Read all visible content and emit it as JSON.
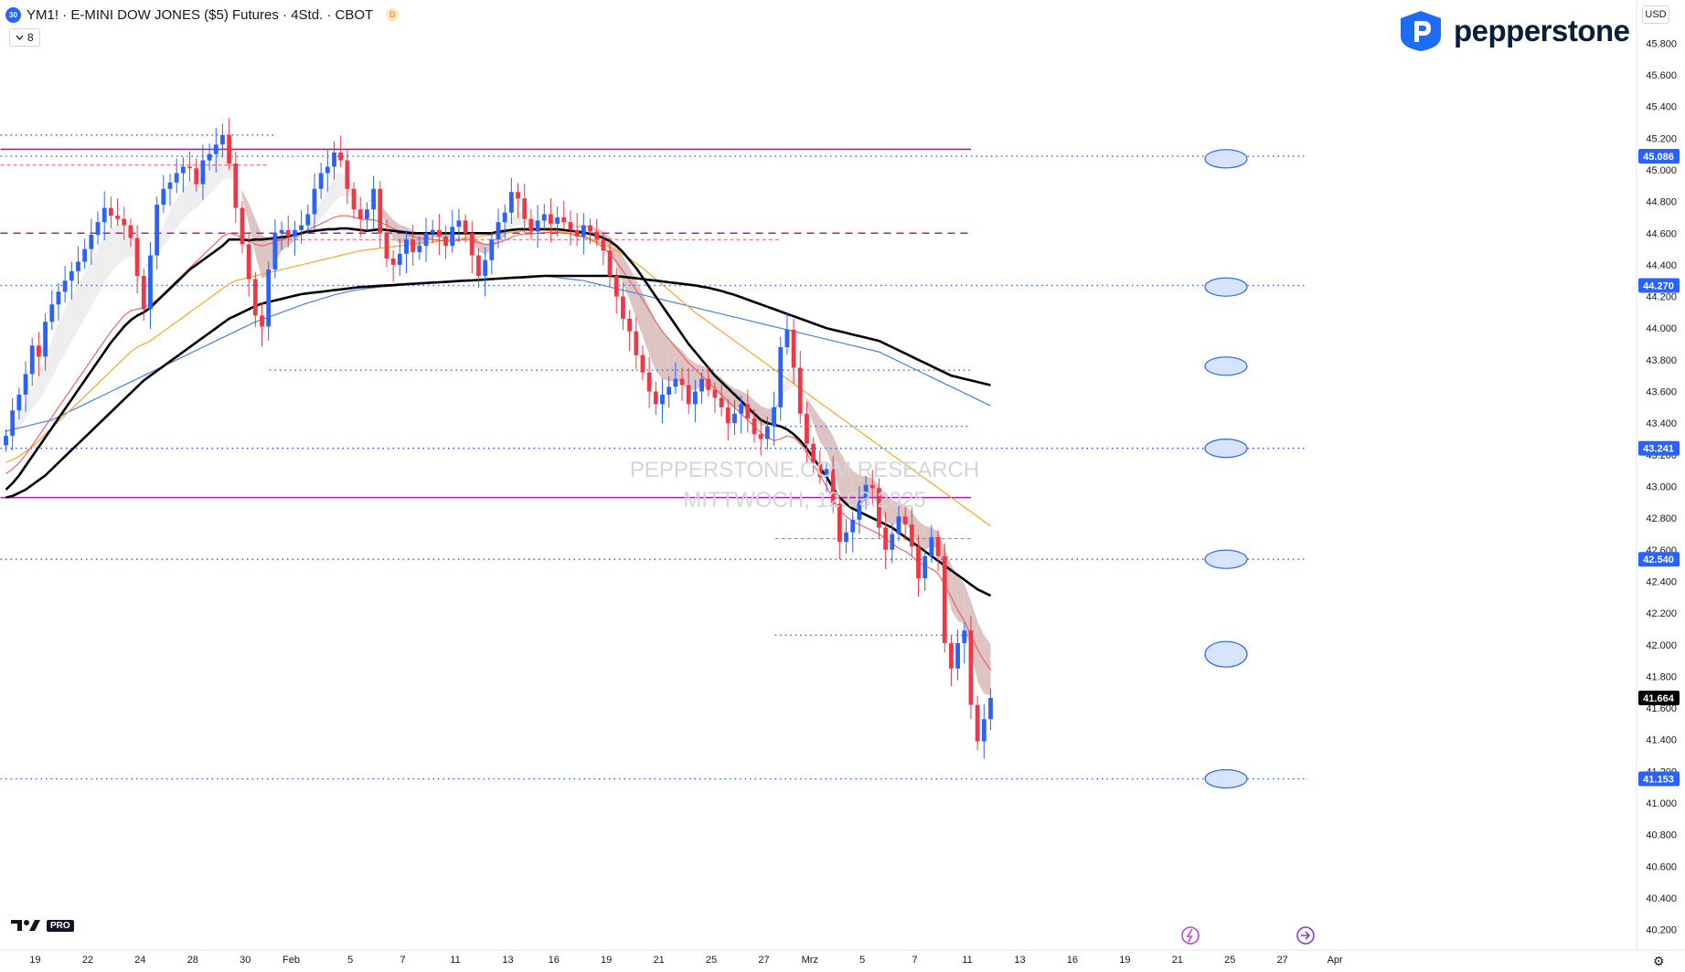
{
  "header": {
    "badge": "30",
    "title": "YM1! · E-MINI DOW JONES ($5) Futures · 4Std. · CBOT",
    "d_badge": "D",
    "indicator_count": "8",
    "currency": "USD"
  },
  "logo": {
    "text": "pepperstone"
  },
  "watermark": {
    "line1": "PEPPERSTONE.COM RESEARCH",
    "line2": "MITTWOCH, 12.03.2025"
  },
  "footer": {
    "tv_pro": "PRO",
    "gear_icon": "gear-icon"
  },
  "colors": {
    "up": "#2962ff",
    "down": "#f23645",
    "magenta": "#a020a0",
    "dotted": "#2962ff",
    "orange": "#f5a623",
    "blue_ma": "#4a7fe0",
    "red_ma": "#f05a5a",
    "black": "#000000"
  },
  "chart_data": {
    "type": "candlestick",
    "symbol": "YM1!",
    "timeframe": "4Std.",
    "ylim": [
      40100,
      45900
    ],
    "y_ticks": [
      40200,
      40400,
      40600,
      40800,
      41000,
      41200,
      41400,
      41600,
      41800,
      42000,
      42200,
      42400,
      42600,
      42800,
      43000,
      43200,
      43400,
      43600,
      43800,
      44000,
      44200,
      44400,
      44600,
      44800,
      45000,
      45200,
      45400,
      45600,
      45800
    ],
    "x_ticks": [
      {
        "label": "19",
        "i": 0
      },
      {
        "label": "22",
        "i": 8
      },
      {
        "label": "24",
        "i": 16
      },
      {
        "label": "28",
        "i": 24
      },
      {
        "label": "30",
        "i": 32
      },
      {
        "label": "Feb",
        "i": 39
      },
      {
        "label": "5",
        "i": 48
      },
      {
        "label": "7",
        "i": 56
      },
      {
        "label": "11",
        "i": 64
      },
      {
        "label": "13",
        "i": 72
      },
      {
        "label": "16",
        "i": 79
      },
      {
        "label": "19",
        "i": 87
      },
      {
        "label": "21",
        "i": 95
      },
      {
        "label": "25",
        "i": 103
      },
      {
        "label": "27",
        "i": 111
      },
      {
        "label": "Mrz",
        "i": 118
      },
      {
        "label": "5",
        "i": 126
      },
      {
        "label": "7",
        "i": 134
      },
      {
        "label": "11",
        "i": 142
      },
      {
        "label": "13",
        "i": 150
      },
      {
        "label": "16",
        "i": 158
      },
      {
        "label": "19",
        "i": 166
      },
      {
        "label": "21",
        "i": 174
      },
      {
        "label": "25",
        "i": 182
      },
      {
        "label": "27",
        "i": 190
      },
      {
        "label": "Apr",
        "i": 198
      }
    ],
    "price_labels": [
      {
        "value": 45086,
        "text": "45.086"
      },
      {
        "value": 44270,
        "text": "44.270"
      },
      {
        "value": 43241,
        "text": "43.241"
      },
      {
        "value": 42540,
        "text": "42.540"
      },
      {
        "value": 41664,
        "text": "41.664",
        "current": true
      },
      {
        "value": 41153,
        "text": "41.153"
      }
    ],
    "horizontal_levels": [
      {
        "value": 45130,
        "style": "solid",
        "color": "#a020a0",
        "from": 0,
        "to": 147
      },
      {
        "value": 44600,
        "style": "dashed",
        "color": "#a020a0",
        "from": 0,
        "to": 147
      },
      {
        "value": 42930,
        "style": "solid",
        "color": "#a020a0",
        "from": 0,
        "to": 147
      },
      {
        "value": 45220,
        "style": "dotted",
        "color": "#2962ff",
        "from": 0,
        "to": 41
      },
      {
        "value": 45086,
        "style": "dotted",
        "color": "#2962ff",
        "from": 0,
        "to": 198
      },
      {
        "value": 44270,
        "style": "dotted",
        "color": "#2962ff",
        "from": 0,
        "to": 198
      },
      {
        "value": 43735,
        "style": "dotted",
        "color": "#2962ff",
        "from": 41,
        "to": 147
      },
      {
        "value": 43380,
        "style": "dotted",
        "color": "#2962ff",
        "from": 118,
        "to": 147
      },
      {
        "value": 43241,
        "style": "dotted",
        "color": "#2962ff",
        "from": 0,
        "to": 198
      },
      {
        "value": 42540,
        "style": "dotted",
        "color": "#2962ff",
        "from": 0,
        "to": 198
      },
      {
        "value": 42060,
        "style": "dotted",
        "color": "#2962ff",
        "from": 118,
        "to": 147
      },
      {
        "value": 41153,
        "style": "dotted",
        "color": "#2962ff",
        "from": 0,
        "to": 198
      },
      {
        "value": 45030,
        "style": "dashed-thin",
        "color": "#f05a5a",
        "from": 0,
        "to": 40
      },
      {
        "value": 44560,
        "style": "dashed-thin",
        "color": "#f05a5a",
        "from": 40,
        "to": 118
      },
      {
        "value": 42670,
        "style": "dashed-thin",
        "color": "#f05a5a",
        "from": 118,
        "to": 147
      }
    ],
    "ellipses": [
      {
        "value": 45070
      },
      {
        "value": 44260
      },
      {
        "value": 43760
      },
      {
        "value": 43241
      },
      {
        "value": 42540
      },
      {
        "value": 41940
      },
      {
        "value": 41153
      }
    ],
    "close": [
      43320,
      43480,
      43580,
      43710,
      43890,
      43820,
      44040,
      44150,
      44230,
      44300,
      44360,
      44420,
      44500,
      44590,
      44670,
      44760,
      44710,
      44690,
      44650,
      44570,
      44330,
      44120,
      44460,
      44780,
      44880,
      44920,
      44980,
      45020,
      45010,
      44910,
      45060,
      45100,
      45160,
      45220,
      45040,
      44760,
      44530,
      44310,
      44080,
      44010,
      44370,
      44600,
      44620,
      44580,
      44620,
      44650,
      44720,
      44880,
      44980,
      45020,
      45110,
      45060,
      44880,
      44750,
      44690,
      44750,
      44880,
      44600,
      44440,
      44400,
      44470,
      44560,
      44480,
      44520,
      44600,
      44620,
      44580,
      44520,
      44640,
      44680,
      44600,
      44460,
      44330,
      44430,
      44560,
      44670,
      44730,
      44860,
      44820,
      44690,
      44610,
      44680,
      44720,
      44660,
      44700,
      44670,
      44620,
      44580,
      44650,
      44610,
      44560,
      44490,
      44330,
      44200,
      44060,
      43980,
      43830,
      43720,
      43600,
      43520,
      43580,
      43630,
      43680,
      43640,
      43520,
      43600,
      43680,
      43610,
      43560,
      43500,
      43400,
      43460,
      43520,
      43430,
      43330,
      43300,
      43380,
      43500,
      43880,
      43990,
      43750,
      43460,
      43270,
      43150,
      43060,
      43110,
      42890,
      42650,
      42710,
      42790,
      42910,
      43010,
      42990,
      42740,
      42600,
      42700,
      42810,
      42760,
      42620,
      42420,
      42560,
      42680,
      42560,
      42010,
      41850,
      42010,
      42090,
      41620,
      41390,
      41530,
      41664
    ],
    "ma_black_fast": [
      42980,
      43020,
      43070,
      43130,
      43190,
      43250,
      43310,
      43370,
      43430,
      43490,
      43550,
      43610,
      43670,
      43730,
      43790,
      43850,
      43910,
      43960,
      44010,
      44050,
      44080,
      44100,
      44130,
      44170,
      44210,
      44250,
      44290,
      44330,
      44370,
      44400,
      44430,
      44460,
      44490,
      44520,
      44560,
      44560,
      44560,
      44555,
      44560,
      44560,
      44565,
      44570,
      44575,
      44580,
      44590,
      44600,
      44610,
      44615,
      44620,
      44625,
      44625,
      44630,
      44630,
      44625,
      44620,
      44615,
      44620,
      44625,
      44620,
      44615,
      44610,
      44605,
      44600,
      44600,
      44600,
      44600,
      44600,
      44600,
      44600,
      44600,
      44600,
      44600,
      44600,
      44600,
      44600,
      44610,
      44615,
      44620,
      44625,
      44625,
      44625,
      44625,
      44625,
      44625,
      44625,
      44620,
      44615,
      44610,
      44605,
      44595,
      44585,
      44570,
      44550,
      44520,
      44480,
      44430,
      44380,
      44320,
      44260,
      44200,
      44140,
      44080,
      44020,
      43960,
      43900,
      43850,
      43800,
      43750,
      43700,
      43660,
      43620,
      43580,
      43540,
      43500,
      43460,
      43420,
      43400,
      43390,
      43380,
      43360,
      43330,
      43290,
      43240,
      43180,
      43120,
      43060,
      42990,
      42930,
      42890,
      42860,
      42840,
      42820,
      42800,
      42780,
      42760,
      42740,
      42710,
      42680,
      42650,
      42620,
      42590,
      42560,
      42530,
      42500,
      42470,
      42440,
      42410,
      42380,
      42350,
      42330,
      42310
    ],
    "ma_black_slow": [
      42930,
      42940,
      42960,
      42980,
      43010,
      43040,
      43070,
      43110,
      43150,
      43190,
      43230,
      43270,
      43310,
      43350,
      43390,
      43430,
      43470,
      43510,
      43550,
      43590,
      43630,
      43670,
      43700,
      43730,
      43760,
      43790,
      43820,
      43850,
      43880,
      43910,
      43940,
      43970,
      44000,
      44030,
      44060,
      44080,
      44100,
      44120,
      44140,
      44155,
      44165,
      44175,
      44185,
      44195,
      44205,
      44215,
      44220,
      44225,
      44230,
      44235,
      44240,
      44245,
      44250,
      44255,
      44260,
      44262,
      44265,
      44268,
      44270,
      44272,
      44275,
      44278,
      44280,
      44283,
      44285,
      44288,
      44290,
      44292,
      44295,
      44298,
      44300,
      44302,
      44305,
      44308,
      44310,
      44313,
      44315,
      44318,
      44320,
      44322,
      44325,
      44328,
      44330,
      44330,
      44330,
      44330,
      44330,
      44330,
      44330,
      44330,
      44330,
      44330,
      44330,
      44328,
      44325,
      44320,
      44315,
      44310,
      44305,
      44300,
      44295,
      44290,
      44285,
      44280,
      44275,
      44270,
      44262,
      44255,
      44245,
      44235,
      44222,
      44210,
      44195,
      44180,
      44165,
      44150,
      44135,
      44120,
      44105,
      44090,
      44075,
      44060,
      44045,
      44030,
      44015,
      44000,
      43990,
      43980,
      43970,
      43960,
      43950,
      43940,
      43930,
      43920,
      43900,
      43880,
      43860,
      43840,
      43820,
      43800,
      43780,
      43760,
      43740,
      43720,
      43700,
      43690,
      43680,
      43670,
      43660,
      43650,
      43640
    ],
    "ma_orange": [
      43150,
      43170,
      43190,
      43220,
      43250,
      43290,
      43330,
      43370,
      43410,
      43450,
      43490,
      43530,
      43570,
      43610,
      43650,
      43690,
      43730,
      43770,
      43810,
      43850,
      43880,
      43900,
      43920,
      43950,
      43980,
      44010,
      44040,
      44070,
      44100,
      44130,
      44160,
      44190,
      44220,
      44250,
      44280,
      44300,
      44310,
      44320,
      44330,
      44340,
      44350,
      44360,
      44370,
      44380,
      44390,
      44400,
      44410,
      44420,
      44430,
      44440,
      44450,
      44460,
      44470,
      44480,
      44490,
      44495,
      44500,
      44505,
      44510,
      44515,
      44520,
      44525,
      44530,
      44535,
      44540,
      44545,
      44550,
      44555,
      44560,
      44565,
      44570,
      44575,
      44580,
      44585,
      44590,
      44595,
      44600,
      44605,
      44610,
      44615,
      44620,
      44620,
      44620,
      44615,
      44610,
      44605,
      44600,
      44590,
      44580,
      44565,
      44550,
      44530,
      44510,
      44490,
      44465,
      44440,
      44410,
      44380,
      44345,
      44310,
      44275,
      44240,
      44205,
      44170,
      44135,
      44100,
      44070,
      44040,
      44010,
      43980,
      43950,
      43920,
      43890,
      43860,
      43830,
      43800,
      43770,
      43740,
      43710,
      43680,
      43650,
      43620,
      43590,
      43560,
      43530,
      43500,
      43470,
      43440,
      43410,
      43380,
      43350,
      43320,
      43290,
      43260,
      43230,
      43200,
      43170,
      43140,
      43110,
      43080,
      43050,
      43020,
      42990,
      42960,
      42930,
      42900,
      42870,
      42840,
      42810,
      42780,
      42750
    ],
    "ma_blue": [
      43350,
      43360,
      43370,
      43380,
      43390,
      43400,
      43410,
      43420,
      43440,
      43460,
      43480,
      43500,
      43520,
      43540,
      43560,
      43580,
      43600,
      43620,
      43640,
      43660,
      43680,
      43700,
      43720,
      43740,
      43760,
      43780,
      43800,
      43820,
      43840,
      43860,
      43880,
      43900,
      43920,
      43940,
      43960,
      43980,
      44000,
      44020,
      44040,
      44055,
      44070,
      44085,
      44100,
      44115,
      44130,
      44145,
      44160,
      44172,
      44185,
      44197,
      44210,
      44220,
      44230,
      44238,
      44245,
      44250,
      44255,
      44260,
      44263,
      44266,
      44270,
      44273,
      44276,
      44279,
      44282,
      44285,
      44288,
      44291,
      44294,
      44297,
      44300,
      44303,
      44306,
      44309,
      44312,
      44315,
      44318,
      44321,
      44324,
      44327,
      44330,
      44330,
      44330,
      44325,
      44320,
      44315,
      44310,
      44305,
      44300,
      44290,
      44280,
      44270,
      44260,
      44250,
      44240,
      44230,
      44220,
      44210,
      44200,
      44190,
      44180,
      44170,
      44160,
      44150,
      44140,
      44130,
      44120,
      44110,
      44100,
      44090,
      44080,
      44070,
      44060,
      44050,
      44040,
      44030,
      44020,
      44010,
      44000,
      43990,
      43980,
      43970,
      43960,
      43950,
      43940,
      43930,
      43920,
      43910,
      43900,
      43890,
      43880,
      43870,
      43860,
      43850,
      43830,
      43810,
      43790,
      43770,
      43750,
      43730,
      43710,
      43690,
      43670,
      43650,
      43630,
      43610,
      43590,
      43570,
      43550,
      43530,
      43510
    ],
    "ma_red": [
      43080,
      43110,
      43150,
      43200,
      43260,
      43320,
      43380,
      43440,
      43500,
      43560,
      43620,
      43680,
      43740,
      43800,
      43860,
      43920,
      43980,
      44030,
      44080,
      44110,
      44120,
      44130,
      44150,
      44180,
      44220,
      44260,
      44300,
      44340,
      44380,
      44420,
      44460,
      44500,
      44540,
      44580,
      44600,
      44590,
      44570,
      44550,
      44530,
      44520,
      44530,
      44545,
      44560,
      44575,
      44590,
      44605,
      44620,
      44640,
      44660,
      44680,
      44700,
      44710,
      44710,
      44700,
      44690,
      44685,
      44685,
      44670,
      44650,
      44630,
      44610,
      44595,
      44580,
      44570,
      44565,
      44560,
      44555,
      44550,
      44550,
      44555,
      44560,
      44555,
      44540,
      44530,
      44530,
      44540,
      44555,
      44575,
      44590,
      44595,
      44595,
      44600,
      44605,
      44605,
      44605,
      44600,
      44595,
      44585,
      44575,
      44560,
      44540,
      44510,
      44470,
      44420,
      44360,
      44300,
      44240,
      44180,
      44110,
      44040,
      43980,
      43930,
      43880,
      43830,
      43780,
      43740,
      43700,
      43660,
      43620,
      43580,
      43540,
      43500,
      43460,
      43420,
      43380,
      43340,
      43310,
      43290,
      43300,
      43320,
      43310,
      43270,
      43210,
      43140,
      43070,
      43000,
      42920,
      42850,
      42810,
      42780,
      42760,
      42740,
      42720,
      42700,
      42670,
      42640,
      42610,
      42590,
      42560,
      42520,
      42500,
      42480,
      42450,
      42380,
      42300,
      42220,
      42150,
      42060,
      41970,
      41900,
      41840
    ],
    "ribbon_start": 0,
    "ribbon_end": 150
  }
}
